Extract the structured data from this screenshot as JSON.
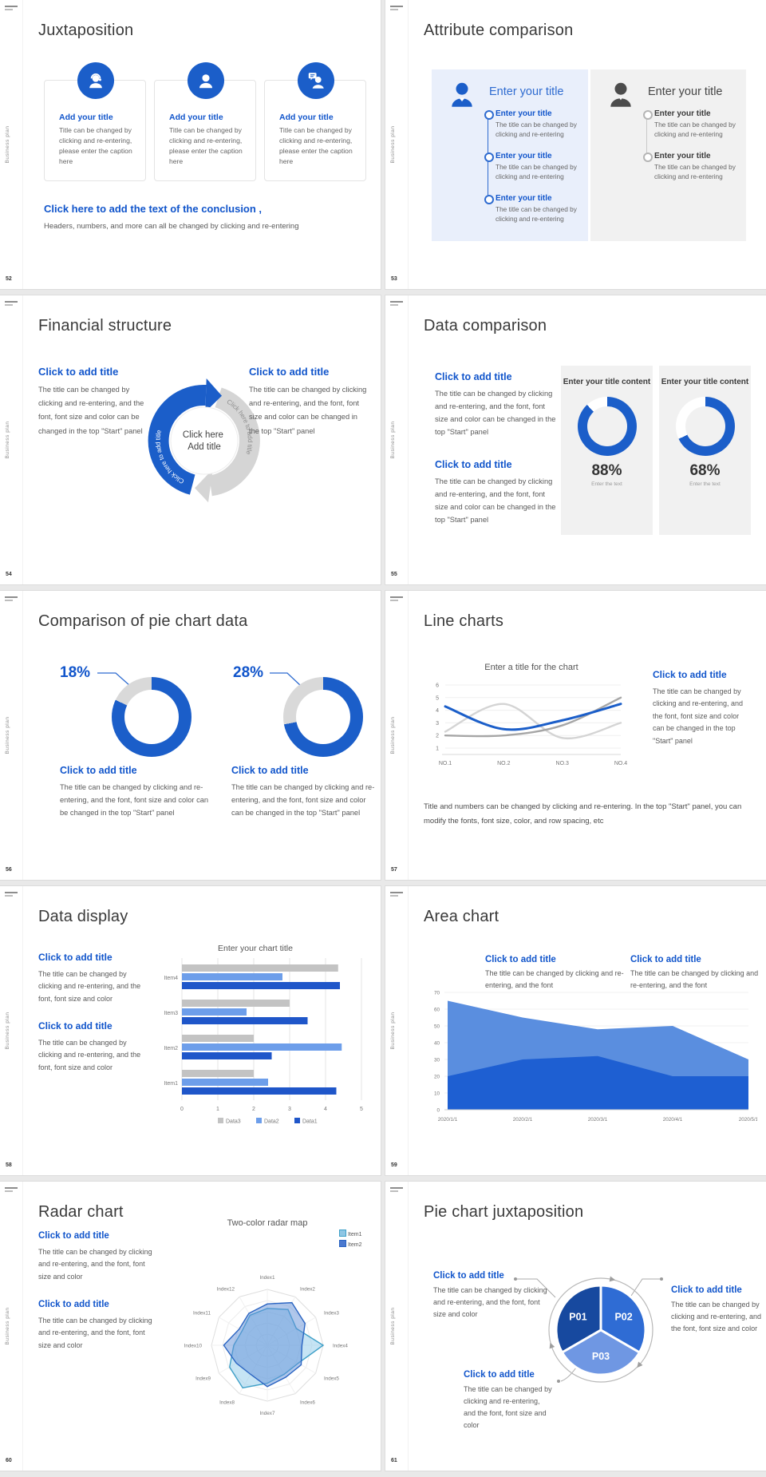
{
  "app": {
    "rail_text": "Business plan"
  },
  "slides": {
    "s52": {
      "page": "52",
      "title": "Juxtaposition",
      "cards": [
        {
          "title": "Add your title",
          "body": "Title can be changed by clicking and re-entering, please enter the caption here"
        },
        {
          "title": "Add your title",
          "body": "Title can be changed by clicking and re-entering, please enter the caption here"
        },
        {
          "title": "Add your title",
          "body": "Title can be changed by clicking and re-entering, please enter the caption here"
        }
      ],
      "conclusion_title": "Click here to add the text of the conclusion ,",
      "conclusion_body": "Headers, numbers, and more can all be changed by clicking and re-entering"
    },
    "s53": {
      "page": "53",
      "title": "Attribute comparison",
      "left": {
        "heading": "Enter your title",
        "items": [
          {
            "t": "Enter your title",
            "b": "The title can be changed by clicking and re-entering"
          },
          {
            "t": "Enter your title",
            "b": "The title can be changed by clicking and re-entering"
          },
          {
            "t": "Enter your title",
            "b": "The title can be changed by clicking and re-entering"
          }
        ]
      },
      "right": {
        "heading": "Enter your title",
        "items": [
          {
            "t": "Enter your title",
            "b": "The title can be changed by clicking and re-entering"
          },
          {
            "t": "Enter your title",
            "b": "The title can be changed by clicking and re-entering"
          }
        ]
      }
    },
    "s54": {
      "page": "54",
      "title": "Financial structure",
      "left": {
        "heading": "Click to add title",
        "body": "The title can be changed by clicking and re-entering, and the font, font size and color can be changed in the top \"Start\" panel"
      },
      "right": {
        "heading": "Click to add title",
        "body": "The title can be changed by clicking and re-entering, and the font, font size and color can be changed in the top \"Start\" panel"
      },
      "center": {
        "line1": "Click here",
        "line2": "Add title",
        "arc_text_left": "Click here to add title",
        "arc_text_right": "Click here to add title"
      }
    },
    "s55": {
      "page": "55",
      "title": "Data comparison",
      "blocks": [
        {
          "heading": "Click to add title",
          "body": "The title can be changed by clicking and re-entering, and the font, font size and color can be changed in the top \"Start\" panel"
        },
        {
          "heading": "Click to add title",
          "body": "The title can be changed by clicking and re-entering, and the font, font size and color can be changed in the top \"Start\" panel"
        }
      ]
    },
    "s56": {
      "page": "56",
      "title": "Comparison of pie chart data",
      "groups": [
        {
          "heading": "Click to add title",
          "body": "The title can be changed by clicking and re-entering, and the font, font size and color can be changed in the top \"Start\" panel"
        },
        {
          "heading": "Click to add title",
          "body": "The title can be changed by clicking and re-entering, and the font, font size and color can be changed in the top \"Start\" panel"
        }
      ]
    },
    "s57": {
      "page": "57",
      "title": "Line charts",
      "block": {
        "heading": "Click to add title",
        "body": "The title can be changed by clicking and re-entering, and the font, font size and color can be changed in the top \"Start\" panel"
      },
      "footnote": "Title and numbers can be changed by clicking and re-entering. In the top \"Start\" panel, you can modify the fonts, font size, color, and row spacing, etc"
    },
    "s58": {
      "page": "58",
      "title": "Data display",
      "blocks": [
        {
          "heading": "Click to add title",
          "body": "The title can be changed by clicking and re-entering, and the font, font size and color"
        },
        {
          "heading": "Click to add title",
          "body": "The title can be changed by clicking and re-entering, and the font, font size and color"
        }
      ]
    },
    "s59": {
      "page": "59",
      "title": "Area chart",
      "blocks": [
        {
          "heading": "Click to add title",
          "body": "The title can be changed by clicking and re-entering, and the font"
        },
        {
          "heading": "Click to add title",
          "body": "The title can be changed by clicking and re-entering, and the font"
        }
      ]
    },
    "s60": {
      "page": "60",
      "title": "Radar chart",
      "blocks": [
        {
          "heading": "Click to add title",
          "body": "The title can be changed by clicking and re-entering, and the font, font size and color"
        },
        {
          "heading": "Click to add title",
          "body": "The title can be changed by clicking and re-entering, and the font, font size and color"
        }
      ]
    },
    "s61": {
      "page": "61",
      "title": "Pie chart juxtaposition",
      "blocks": [
        {
          "heading": "Click to add title",
          "body": "The title can be changed by clicking and re-entering, and the font, font size and color"
        },
        {
          "heading": "Click to add title",
          "body": "The title can be changed by clicking and re-entering, and the font, font size and color"
        },
        {
          "heading": "Click to add title",
          "body": "The title can be changed by clicking and re-entering, and the font, font size and color"
        }
      ]
    }
  },
  "chart_data": [
    {
      "id": "s55-donuts",
      "type": "pie",
      "subtype": "donut-progress",
      "unit": "%",
      "items": [
        {
          "title": "Enter your title content",
          "value": 88,
          "label": "88%",
          "caption": "Enter the text"
        },
        {
          "title": "Enter your title content",
          "value": 68,
          "label": "68%",
          "caption": "Enter the text"
        }
      ],
      "colors": {
        "fill": "#1b5ec9",
        "rest": "#ffffff"
      }
    },
    {
      "id": "s56-donuts",
      "type": "pie",
      "subtype": "donut-share",
      "unit": "%",
      "items": [
        {
          "label": "18%",
          "value": 18
        },
        {
          "label": "28%",
          "value": 28
        }
      ],
      "colors": {
        "share": "#d9d9d9",
        "rest": "#1b5ec9"
      }
    },
    {
      "id": "s57-line",
      "type": "line",
      "title": "Enter a title for the chart",
      "x": [
        "NO.1",
        "NO.2",
        "NO.3",
        "NO.4"
      ],
      "ylim": [
        1,
        6
      ],
      "yticks": [
        1,
        2,
        3,
        4,
        5,
        6
      ],
      "grid": true,
      "series": [
        {
          "name": "blue",
          "color": "#1b5ec9",
          "values": [
            4.3,
            2.5,
            3.2,
            4.5
          ]
        },
        {
          "name": "gray-dark",
          "color": "#a6a6a6",
          "values": [
            2.0,
            2.0,
            2.8,
            5.0
          ]
        },
        {
          "name": "gray-light",
          "color": "#d4d4d4",
          "values": [
            2.3,
            4.5,
            1.8,
            3.0
          ]
        }
      ]
    },
    {
      "id": "s58-bars",
      "type": "bar",
      "orientation": "horizontal",
      "title": "Enter your chart title",
      "categories": [
        "Item1",
        "Item2",
        "Item3",
        "Item4"
      ],
      "xlim": [
        0,
        5
      ],
      "xticks": [
        0,
        1,
        2,
        3,
        4,
        5
      ],
      "legend_order": [
        "Data3",
        "Data2",
        "Data1"
      ],
      "series": [
        {
          "name": "Data1",
          "color": "#1f56c9",
          "values": [
            4.3,
            2.5,
            3.5,
            4.4
          ]
        },
        {
          "name": "Data2",
          "color": "#6d9eea",
          "values": [
            2.4,
            4.45,
            1.8,
            2.8
          ]
        },
        {
          "name": "Data3",
          "color": "#c3c3c3",
          "values": [
            2.0,
            2.0,
            3.0,
            4.35
          ]
        }
      ]
    },
    {
      "id": "s59-area",
      "type": "area",
      "x": [
        "2020/1/1",
        "2020/2/1",
        "2020/3/1",
        "2020/4/1",
        "2020/5/1"
      ],
      "ylim": [
        0,
        70
      ],
      "yticks": [
        0,
        10,
        20,
        30,
        40,
        50,
        60,
        70
      ],
      "series": [
        {
          "name": "light-blue",
          "color": "#5a8edf",
          "values": [
            65,
            55,
            48,
            50,
            30
          ]
        },
        {
          "name": "dark-blue",
          "color": "#1e5fd2",
          "values": [
            20,
            30,
            32,
            20,
            20
          ]
        }
      ]
    },
    {
      "id": "s60-radar",
      "type": "radar",
      "title": "Two-color radar map",
      "rmax": 5,
      "axes": [
        "Index1",
        "Index2",
        "Index3",
        "Index4",
        "Index5",
        "Index6",
        "Index7",
        "Index8",
        "Index9",
        "Index10",
        "Index11",
        "Index12"
      ],
      "series": [
        {
          "name": "Item1",
          "color": "#3fa0c8",
          "fill": "rgba(151,206,235,0.55)",
          "values": [
            3.3,
            3.7,
            3.0,
            5.0,
            3.2,
            3.0,
            3.4,
            4.4,
            3.9,
            3.0,
            2.6,
            3.1
          ]
        },
        {
          "name": "Item2",
          "color": "#2a64c2",
          "fill": "rgba(98,143,215,0.5)",
          "values": [
            3.7,
            4.4,
            3.9,
            3.1,
            3.5,
            3.3,
            3.7,
            3.0,
            3.2,
            3.9,
            2.9,
            3.3
          ]
        }
      ]
    },
    {
      "id": "s61-pie",
      "type": "pie",
      "slices": [
        {
          "label": "P01",
          "value": 33.3,
          "color": "#17499f"
        },
        {
          "label": "P02",
          "value": 33.3,
          "color": "#2f6cd4"
        },
        {
          "label": "P03",
          "value": 33.3,
          "color": "#6f97e3"
        }
      ]
    }
  ]
}
